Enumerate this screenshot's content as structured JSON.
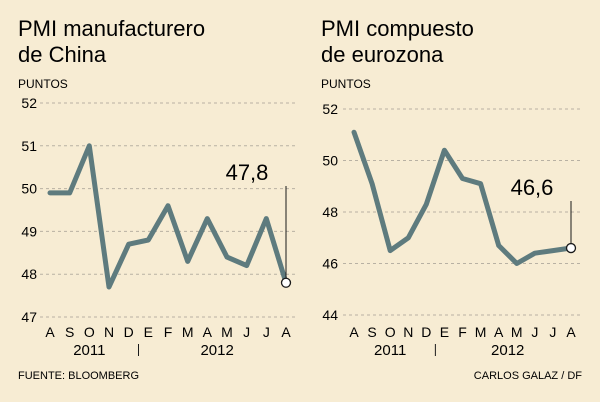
{
  "chart_data": [
    {
      "type": "line",
      "title_lines": [
        "PMI manufacturero",
        "de China"
      ],
      "ylabel": "PUNTOS",
      "ylim": [
        47,
        52
      ],
      "yticks": [
        47,
        48,
        49,
        50,
        51,
        52
      ],
      "categories": [
        "A",
        "S",
        "O",
        "N",
        "D",
        "E",
        "F",
        "M",
        "A",
        "M",
        "J",
        "J",
        "A"
      ],
      "years": [
        {
          "label": "2011",
          "start": 0,
          "end": 4
        },
        {
          "label": "2012",
          "start": 5,
          "end": 12
        }
      ],
      "values": [
        49.9,
        49.9,
        51.0,
        47.7,
        48.7,
        48.8,
        49.6,
        48.3,
        49.3,
        48.4,
        48.2,
        49.3,
        47.8
      ],
      "callout": "47,8",
      "line_color": "#5e7b7e"
    },
    {
      "type": "line",
      "title_lines": [
        "PMI compuesto",
        "de eurozona"
      ],
      "ylabel": "PUNTOS",
      "ylim": [
        44,
        52
      ],
      "yticks": [
        44,
        46,
        48,
        50,
        52
      ],
      "categories": [
        "A",
        "S",
        "O",
        "N",
        "D",
        "E",
        "F",
        "M",
        "A",
        "M",
        "J",
        "J",
        "A"
      ],
      "years": [
        {
          "label": "2011",
          "start": 0,
          "end": 4
        },
        {
          "label": "2012",
          "start": 5,
          "end": 12
        }
      ],
      "values": [
        51.1,
        49.1,
        46.5,
        47.0,
        48.3,
        50.4,
        49.3,
        49.1,
        46.7,
        46.0,
        46.4,
        46.5,
        46.6
      ],
      "callout": "46,6",
      "line_color": "#5e7b7e"
    }
  ],
  "footer": {
    "source": "FUENTE: BLOOMBERG",
    "credit": "CARLOS GALAZ / DF"
  }
}
